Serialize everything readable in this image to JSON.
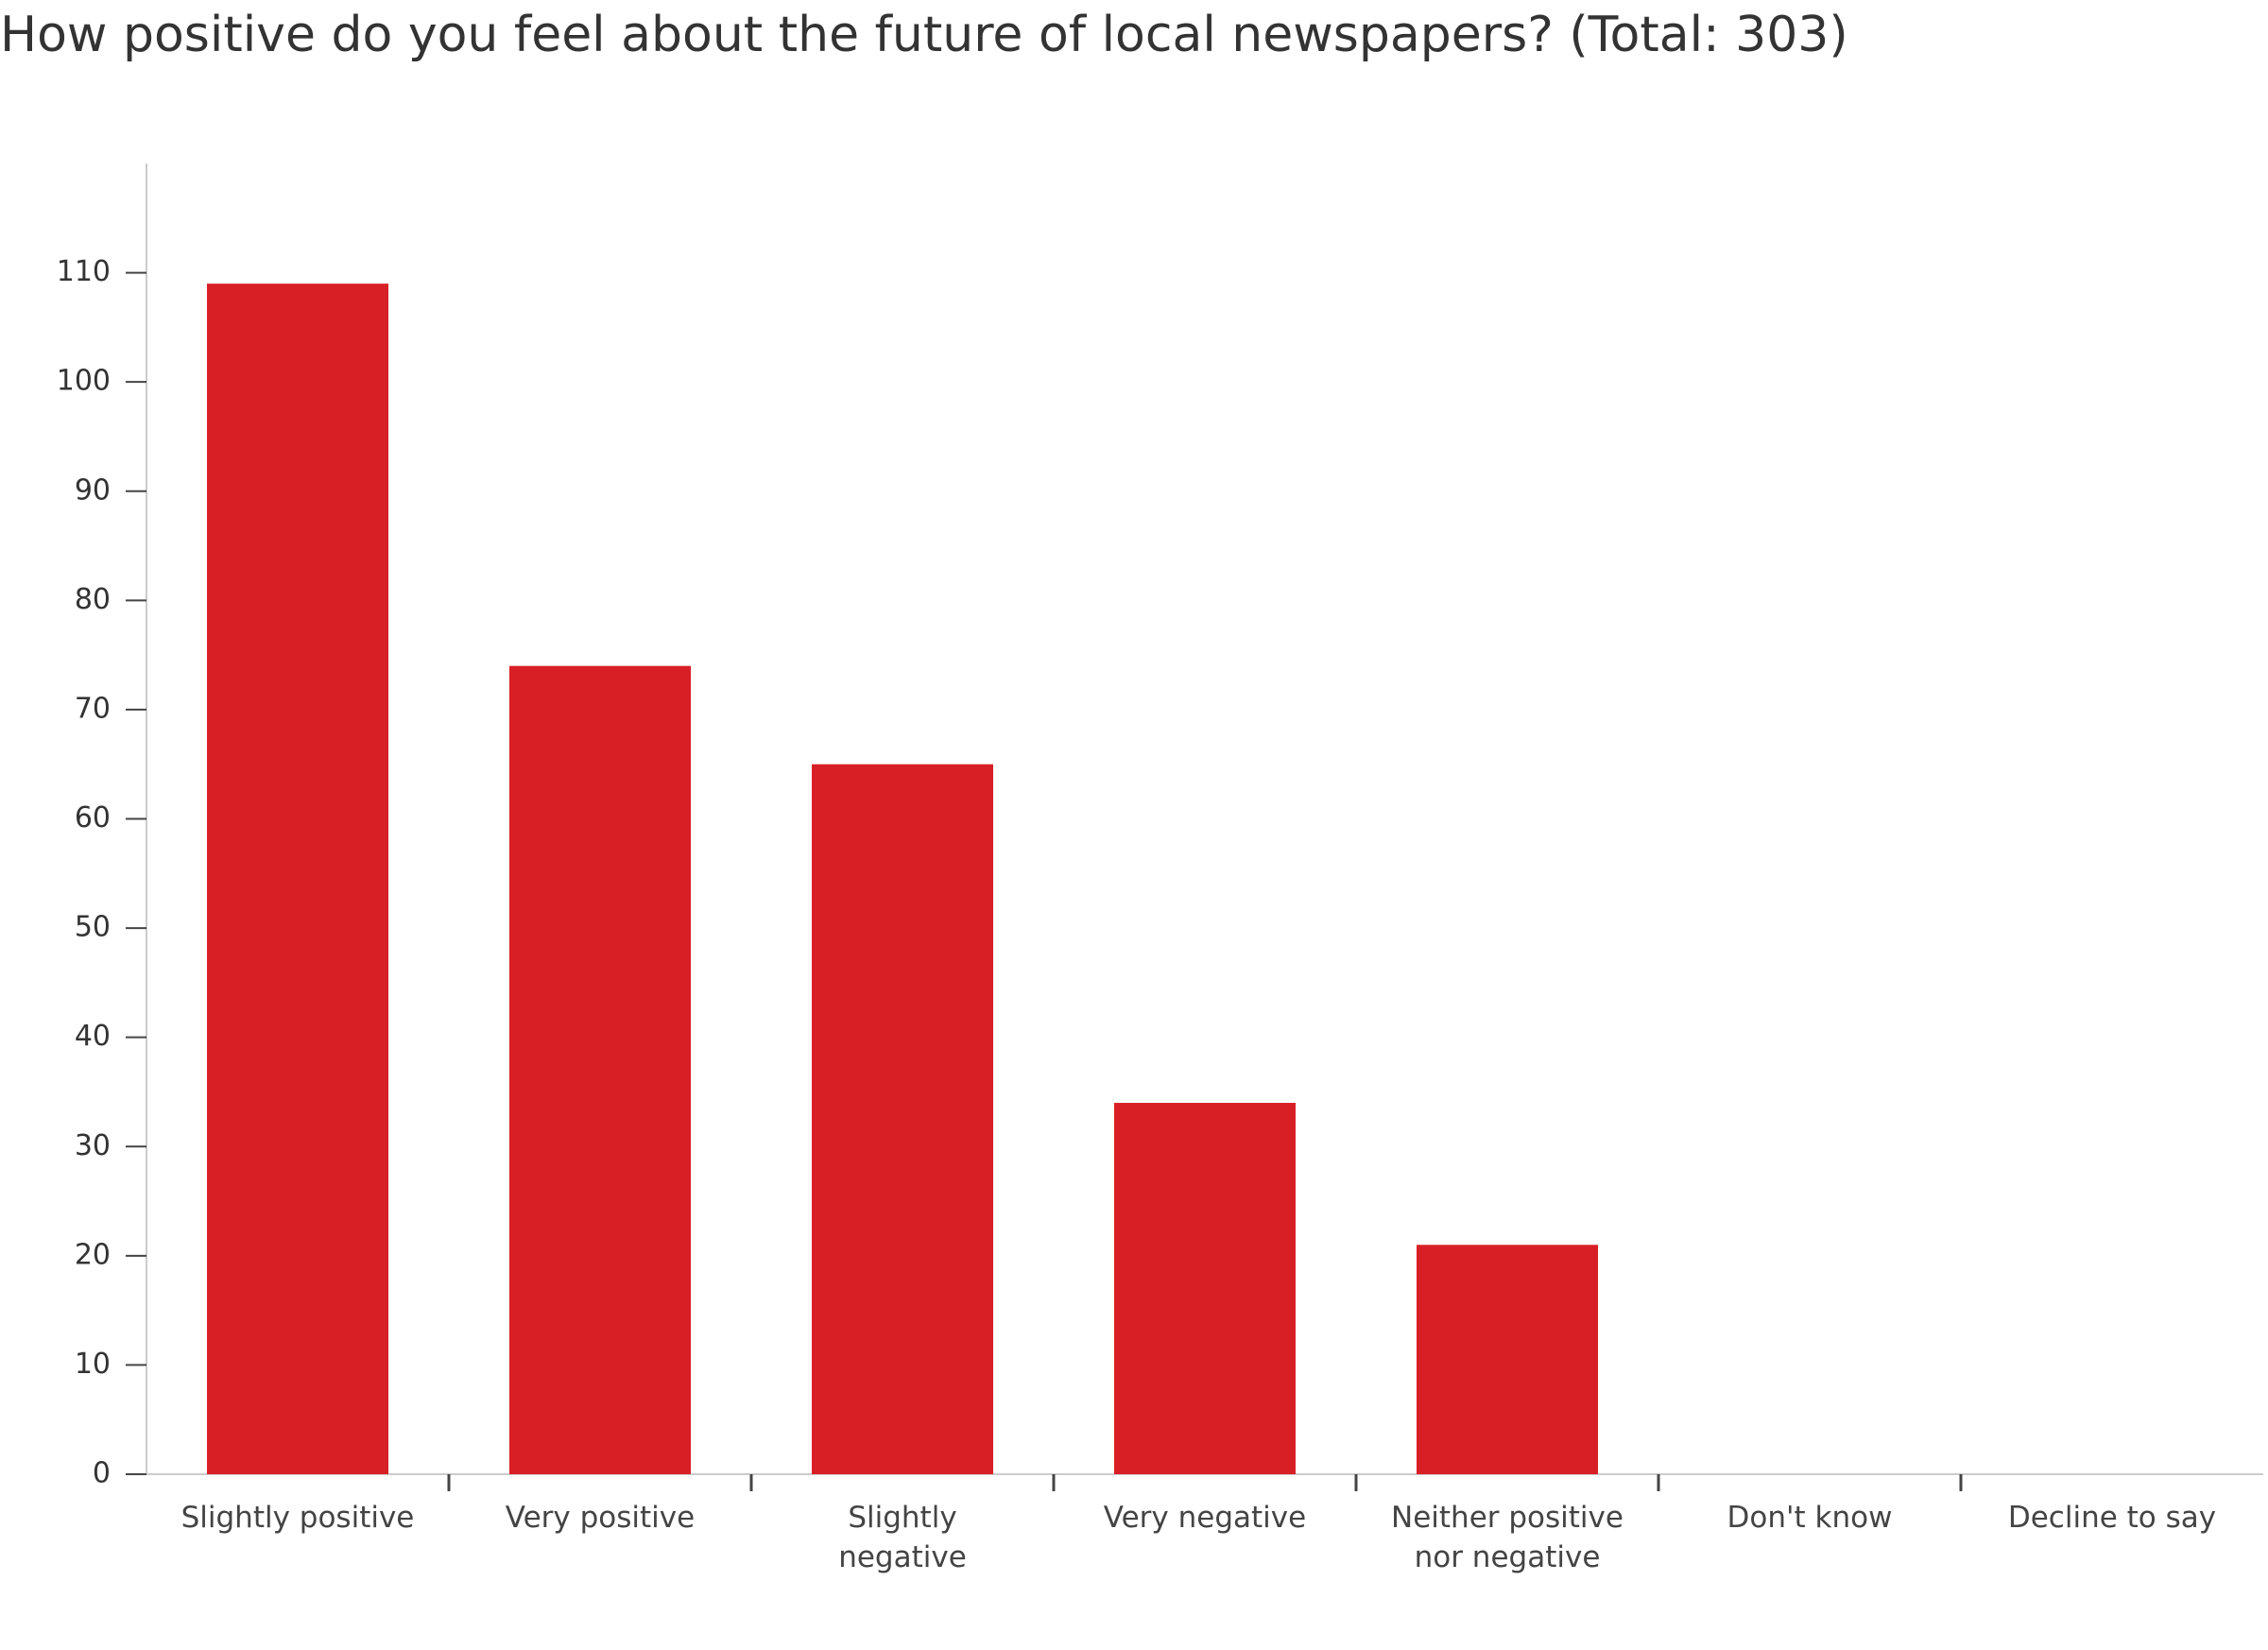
{
  "chart_data": {
    "type": "bar",
    "title": "How positive do you feel about the future of local newspapers? (Total: 303)",
    "categories": [
      "Slightly positive",
      "Very positive",
      "Slightly negative",
      "Very negative",
      "Neither positive nor negative",
      "Don't know",
      "Decline to say"
    ],
    "values": [
      109,
      74,
      65,
      34,
      21,
      0,
      0
    ],
    "color": "#d91f26",
    "ylim": [
      0,
      120
    ],
    "yticks": [
      0,
      10,
      20,
      30,
      40,
      50,
      60,
      70,
      80,
      90,
      100,
      110
    ],
    "grid": false
  }
}
